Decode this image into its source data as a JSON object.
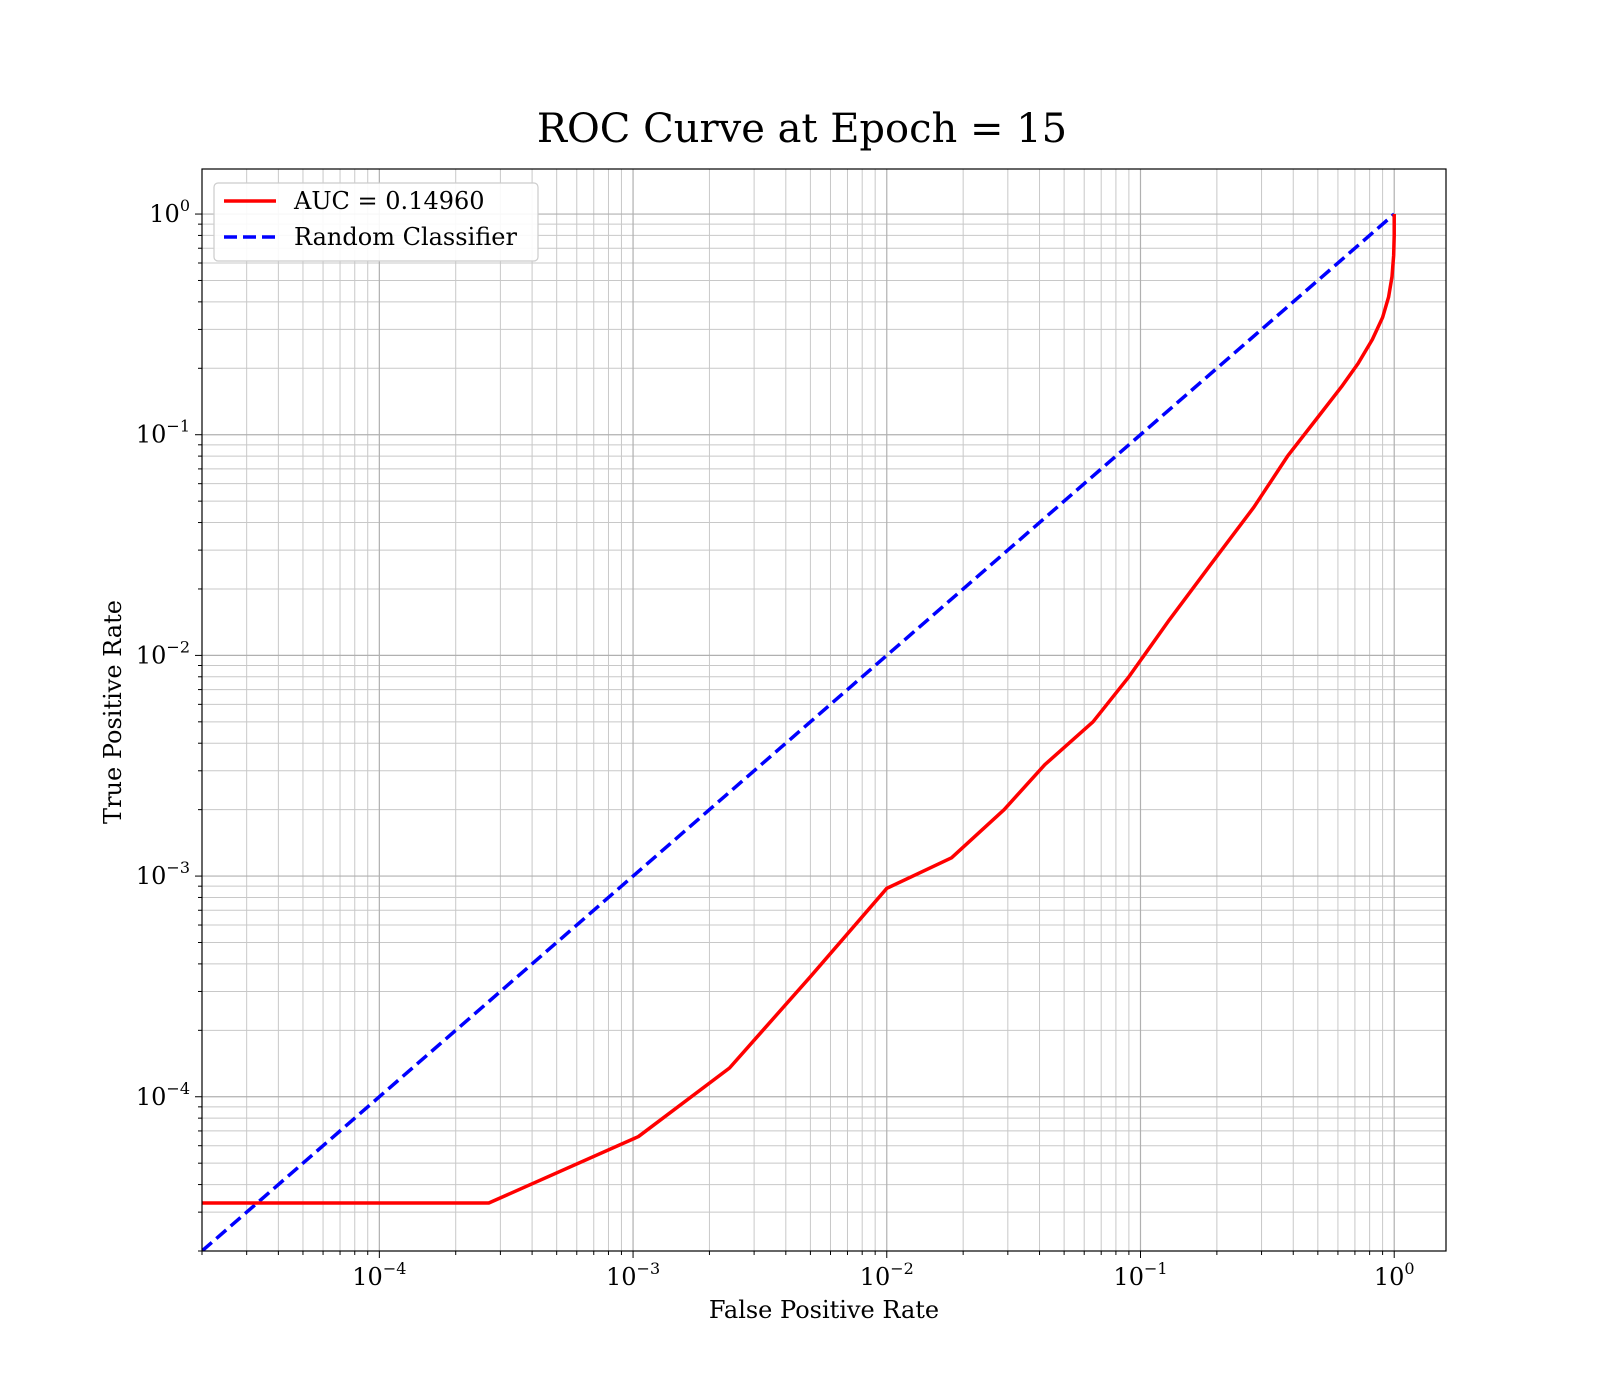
{
  "chart_data": {
    "type": "line",
    "title": "ROC Curve at Epoch = 15",
    "xlabel": "False Positive Rate",
    "ylabel": "True Positive Rate",
    "xscale": "log",
    "yscale": "log",
    "xlim": [
      2e-05,
      1.6
    ],
    "ylim": [
      2e-05,
      1.6
    ],
    "x_ticks": [
      {
        "base": "10",
        "exp": "−4",
        "value": 0.0001
      },
      {
        "base": "10",
        "exp": "−3",
        "value": 0.001
      },
      {
        "base": "10",
        "exp": "−2",
        "value": 0.01
      },
      {
        "base": "10",
        "exp": "−1",
        "value": 0.1
      },
      {
        "base": "10",
        "exp": "0",
        "value": 1
      }
    ],
    "y_ticks": [
      {
        "base": "10",
        "exp": "−4",
        "value": 0.0001
      },
      {
        "base": "10",
        "exp": "−3",
        "value": 0.001
      },
      {
        "base": "10",
        "exp": "−2",
        "value": 0.01
      },
      {
        "base": "10",
        "exp": "−1",
        "value": 0.1
      },
      {
        "base": "10",
        "exp": "0",
        "value": 1
      }
    ],
    "grid": true,
    "legend_position": "upper-left",
    "series": [
      {
        "name": "AUC = 0.14960",
        "color": "#ff0000",
        "style": "solid",
        "points": [
          [
            2e-05,
            3.3e-05
          ],
          [
            0.00027,
            3.3e-05
          ],
          [
            0.00105,
            6.6e-05
          ],
          [
            0.0024,
            0.000135
          ],
          [
            0.005,
            0.00035
          ],
          [
            0.01,
            0.00088
          ],
          [
            0.018,
            0.00121
          ],
          [
            0.029,
            0.002
          ],
          [
            0.042,
            0.0032
          ],
          [
            0.065,
            0.005
          ],
          [
            0.09,
            0.008
          ],
          [
            0.13,
            0.0145
          ],
          [
            0.19,
            0.026
          ],
          [
            0.28,
            0.047
          ],
          [
            0.38,
            0.08
          ],
          [
            0.5,
            0.12
          ],
          [
            0.62,
            0.165
          ],
          [
            0.72,
            0.21
          ],
          [
            0.82,
            0.27
          ],
          [
            0.9,
            0.34
          ],
          [
            0.95,
            0.42
          ],
          [
            0.98,
            0.52
          ],
          [
            0.995,
            0.65
          ],
          [
            1.0,
            0.8
          ],
          [
            1.0,
            1.0
          ]
        ]
      },
      {
        "name": "Random Classifier",
        "color": "#0000ff",
        "style": "dashed",
        "points": [
          [
            2e-05,
            2e-05
          ],
          [
            1.0,
            1.0
          ]
        ]
      }
    ]
  }
}
